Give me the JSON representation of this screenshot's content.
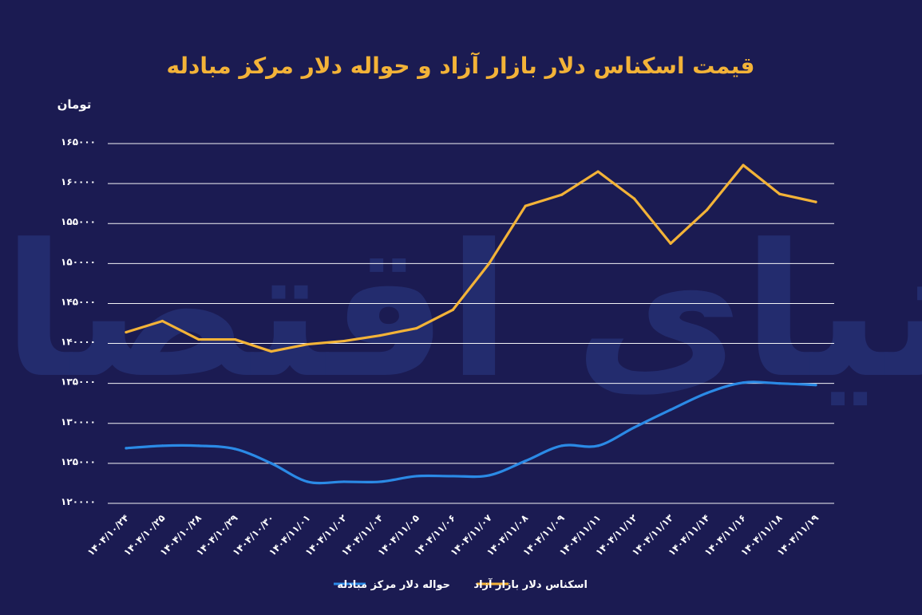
{
  "chart_data": {
    "type": "line",
    "title": "قیمت اسکناس دلار بازار آزاد و حواله دلار مرکز مبادله",
    "ylabel": "تومان",
    "xlabel": "",
    "ylim": [
      120000,
      165000
    ],
    "yticks": [
      120000,
      125000,
      130000,
      135000,
      140000,
      145000,
      150000,
      155000,
      160000,
      165000
    ],
    "ytick_labels": [
      "۱۲۰۰۰۰",
      "۱۲۵۰۰۰",
      "۱۳۰۰۰۰",
      "۱۳۵۰۰۰",
      "۱۴۰۰۰۰",
      "۱۴۵۰۰۰",
      "۱۵۰۰۰۰",
      "۱۵۵۰۰۰",
      "۱۶۰۰۰۰",
      "۱۶۵۰۰۰"
    ],
    "categories": [
      "۱۴۰۴/۱۰/۲۴",
      "۱۴۰۴/۱۰/۲۵",
      "۱۴۰۴/۱۰/۲۸",
      "۱۴۰۴/۱۰/۲۹",
      "۱۴۰۴/۱۰/۳۰",
      "۱۴۰۴/۱۱/۰۱",
      "۱۴۰۴/۱۱/۰۲",
      "۱۴۰۴/۱۱/۰۴",
      "۱۴۰۴/۱۱/۰۵",
      "۱۴۰۴/۱۱/۰۶",
      "۱۴۰۴/۱۱/۰۷",
      "۱۴۰۴/۱۱/۰۸",
      "۱۴۰۴/۱۱/۰۹",
      "۱۴۰۴/۱۱/۱۱",
      "۱۴۰۴/۱۱/۱۲",
      "۱۴۰۴/۱۱/۱۳",
      "۱۴۰۴/۱۱/۱۴",
      "۱۴۰۴/۱۱/۱۶",
      "۱۴۰۴/۱۱/۱۸",
      "۱۴۰۴/۱۱/۱۹"
    ],
    "series": [
      {
        "name": "اسکناس دلار بازار آزاد",
        "color": "#f3b338",
        "values": [
          141400,
          142800,
          140500,
          140500,
          139000,
          139900,
          140300,
          141000,
          141900,
          144200,
          150000,
          157200,
          158600,
          161500,
          158100,
          152500,
          156700,
          162300,
          158700,
          157700
        ]
      },
      {
        "name": "حواله دلار مرکز مبادله",
        "color": "#2b8ae6",
        "values": [
          126900,
          127200,
          127200,
          126800,
          125000,
          122700,
          122700,
          122700,
          123400,
          123400,
          123500,
          125300,
          127200,
          127200,
          129500,
          131700,
          133800,
          135100,
          135000,
          134800
        ]
      }
    ],
    "grid": true,
    "legend_position": "bottom"
  }
}
